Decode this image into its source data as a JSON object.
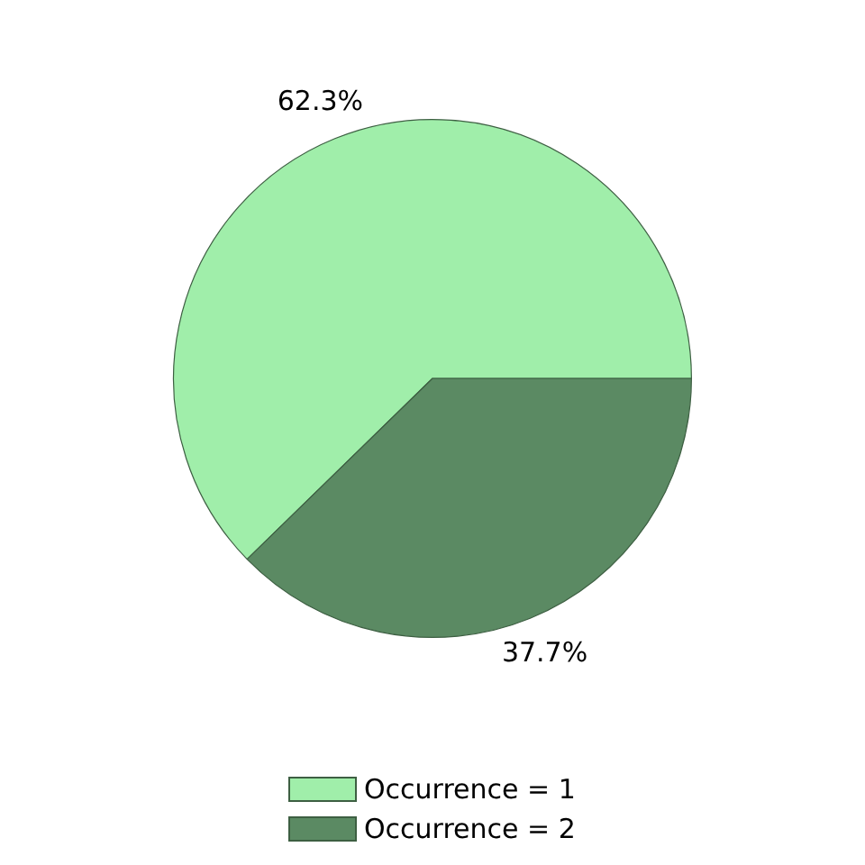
{
  "chart_data": {
    "type": "pie",
    "categories": [
      "Occurrence = 1",
      "Occurrence = 2"
    ],
    "values": [
      62.3,
      37.7
    ],
    "value_labels": [
      "62.3%",
      "37.7%"
    ],
    "colors": [
      "#a0eeaa",
      "#5b8a63"
    ],
    "legend": "bottom"
  }
}
